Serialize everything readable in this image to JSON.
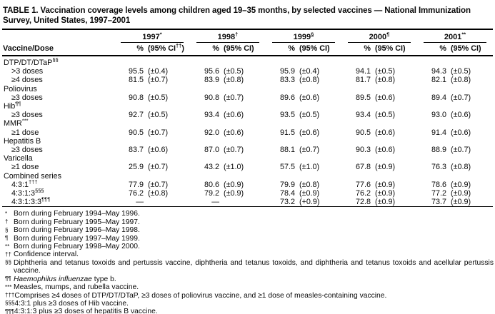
{
  "title": "TABLE 1. Vaccination coverage levels among children aged 19–35 months, by selected vaccines — National Immunization Survey, United States, 1997–2001",
  "header": {
    "row_label": "Vaccine/Dose",
    "columns": [
      {
        "year": "1997",
        "marker": "*",
        "pct_label": "%",
        "ci_pre": "(95% CI",
        "ci_sup": "††",
        "ci_post": ")"
      },
      {
        "year": "1998",
        "marker": "†",
        "pct_label": "%",
        "ci_pre": "(95% CI",
        "ci_sup": "",
        "ci_post": ")"
      },
      {
        "year": "1999",
        "marker": "§",
        "pct_label": "%",
        "ci_pre": "(95% CI",
        "ci_sup": "",
        "ci_post": ")"
      },
      {
        "year": "2000",
        "marker": "¶",
        "pct_label": "%",
        "ci_pre": "(95% CI",
        "ci_sup": "",
        "ci_post": ")"
      },
      {
        "year": "2001",
        "marker": "**",
        "pct_label": "%",
        "ci_pre": "(95% CI",
        "ci_sup": "",
        "ci_post": ")"
      }
    ]
  },
  "rows": [
    {
      "type": "group",
      "label": "DTP/DT/DTaP",
      "sup": "§§"
    },
    {
      "type": "data",
      "label": ">3 doses",
      "sup": "",
      "values": [
        {
          "pct": "95.5",
          "ci": "(±0.4)"
        },
        {
          "pct": "95.6",
          "ci": "(±0.5)"
        },
        {
          "pct": "95.9",
          "ci": "(±0.4)"
        },
        {
          "pct": "94.1",
          "ci": "(±0.5)"
        },
        {
          "pct": "94.3",
          "ci": "(±0.5)"
        }
      ]
    },
    {
      "type": "data",
      "label": "≥4 doses",
      "sup": "",
      "values": [
        {
          "pct": "81.5",
          "ci": "(±0.7)"
        },
        {
          "pct": "83.9",
          "ci": "(±0.8)"
        },
        {
          "pct": "83.3",
          "ci": "(±0.8)"
        },
        {
          "pct": "81.7",
          "ci": "(±0.8)"
        },
        {
          "pct": "82.1",
          "ci": "(±0.8)"
        }
      ]
    },
    {
      "type": "group",
      "label": "Poliovirus",
      "sup": ""
    },
    {
      "type": "data",
      "label": "≥3 doses",
      "sup": "",
      "values": [
        {
          "pct": "90.8",
          "ci": "(±0.5)"
        },
        {
          "pct": "90.8",
          "ci": "(±0.7)"
        },
        {
          "pct": "89.6",
          "ci": "(±0.6)"
        },
        {
          "pct": "89.5",
          "ci": "(±0.6)"
        },
        {
          "pct": "89.4",
          "ci": "(±0.7)"
        }
      ]
    },
    {
      "type": "group",
      "label": "Hib",
      "sup": "¶¶"
    },
    {
      "type": "data",
      "label": "≥3 doses",
      "sup": "",
      "values": [
        {
          "pct": "92.7",
          "ci": "(±0.5)"
        },
        {
          "pct": "93.4",
          "ci": "(±0.6)"
        },
        {
          "pct": "93.5",
          "ci": "(±0.5)"
        },
        {
          "pct": "93.4",
          "ci": "(±0.5)"
        },
        {
          "pct": "93.0",
          "ci": "(±0.6)"
        }
      ]
    },
    {
      "type": "group",
      "label": "MMR",
      "sup": "***"
    },
    {
      "type": "data",
      "label": "≥1 dose",
      "sup": "",
      "values": [
        {
          "pct": "90.5",
          "ci": "(±0.7)"
        },
        {
          "pct": "92.0",
          "ci": "(±0.6)"
        },
        {
          "pct": "91.5",
          "ci": "(±0.6)"
        },
        {
          "pct": "90.5",
          "ci": "(±0.6)"
        },
        {
          "pct": "91.4",
          "ci": "(±0.6)"
        }
      ]
    },
    {
      "type": "group",
      "label": "Hepatitis B",
      "sup": ""
    },
    {
      "type": "data",
      "label": "≥3 doses",
      "sup": "",
      "values": [
        {
          "pct": "83.7",
          "ci": "(±0.6)"
        },
        {
          "pct": "87.0",
          "ci": "(±0.7)"
        },
        {
          "pct": "88.1",
          "ci": "(±0.7)"
        },
        {
          "pct": "90.3",
          "ci": "(±0.6)"
        },
        {
          "pct": "88.9",
          "ci": "(±0.7)"
        }
      ]
    },
    {
      "type": "group",
      "label": "Varicella",
      "sup": ""
    },
    {
      "type": "data",
      "label": "≥1 dose",
      "sup": "",
      "values": [
        {
          "pct": "25.9",
          "ci": "(±0.7)"
        },
        {
          "pct": "43.2",
          "ci": "(±1.0)"
        },
        {
          "pct": "57.5",
          "ci": "(±1.0)"
        },
        {
          "pct": "67.8",
          "ci": "(±0.9)"
        },
        {
          "pct": "76.3",
          "ci": "(±0.8)"
        }
      ]
    },
    {
      "type": "group",
      "label": "Combined series",
      "sup": ""
    },
    {
      "type": "data",
      "label": "4:3:1",
      "sup": "†††",
      "values": [
        {
          "pct": "77.9",
          "ci": "(±0.7)"
        },
        {
          "pct": "80.6",
          "ci": "(±0.9)"
        },
        {
          "pct": "79.9",
          "ci": "(±0.8)"
        },
        {
          "pct": "77.6",
          "ci": "(±0.9)"
        },
        {
          "pct": "78.6",
          "ci": "(±0.9)"
        }
      ]
    },
    {
      "type": "data",
      "label": "4:3:1:3",
      "sup": "§§§",
      "values": [
        {
          "pct": "76.2",
          "ci": "(±0.8)"
        },
        {
          "pct": "79.2",
          "ci": "(±0.9)"
        },
        {
          "pct": "78.4",
          "ci": "(±0.9)"
        },
        {
          "pct": "76.2",
          "ci": "(±0.9)"
        },
        {
          "pct": "77.2",
          "ci": "(±0.9)"
        }
      ]
    },
    {
      "type": "data",
      "label": "4:3:1:3:3",
      "sup": "¶¶¶",
      "values": [
        {
          "pct": "—",
          "ci": ""
        },
        {
          "pct": "—",
          "ci": ""
        },
        {
          "pct": "73.2",
          "ci": "(+0.9)"
        },
        {
          "pct": "72.8",
          "ci": "(±0.9)"
        },
        {
          "pct": "73.7",
          "ci": "(±0.9)"
        }
      ]
    }
  ],
  "footnotes": [
    {
      "marker": "*",
      "text": "Born during February 1994–May 1996."
    },
    {
      "marker": "†",
      "text": "Born during February 1995–May 1997."
    },
    {
      "marker": "§",
      "text": "Born during February 1996–May 1998."
    },
    {
      "marker": "¶",
      "text": "Born during February 1997–May 1999."
    },
    {
      "marker": "**",
      "text": "Born during February 1998–May 2000."
    },
    {
      "marker": "††",
      "text": "Confidence interval."
    },
    {
      "marker": "§§",
      "text": "Diphtheria and tetanus toxoids and pertussis vaccine, diphtheria and tetanus toxoids, and diphtheria and tetanus toxoids and acellular pertussis vaccine."
    },
    {
      "marker": "¶¶",
      "italic": "Haemophilus influenzae",
      "text": " type b."
    },
    {
      "marker": "***",
      "text": "Measles, mumps, and rubella vaccine."
    },
    {
      "marker": "†††",
      "text": "Comprises ≥4 doses of DTP/DT/DTaP, ≥3 doses of poliovirus vaccine, and ≥1 dose of measles-containing vaccine."
    },
    {
      "marker": "§§§",
      "text": "4:3:1 plus ≥3 doses of Hib vaccine."
    },
    {
      "marker": "¶¶¶",
      "text": "4:3:1:3 plus ≥3 doses of hepatitis B vaccine."
    }
  ]
}
